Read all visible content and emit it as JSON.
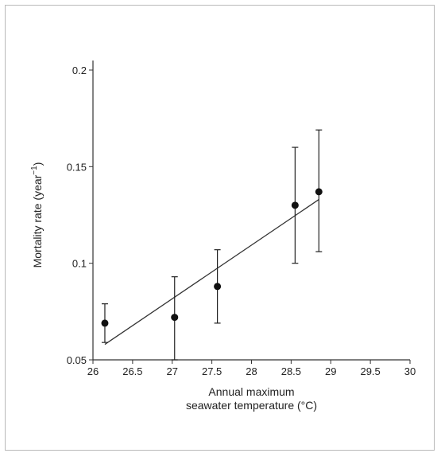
{
  "chart_data": {
    "type": "scatter",
    "title": "",
    "xlabel_lines": [
      "Annual maximum",
      "seawater temperature (°C)"
    ],
    "ylabel": "Mortality rate (year",
    "ylabel_superscript": "−1",
    "ylabel_suffix": ")",
    "xlim": [
      26,
      30
    ],
    "ylim": [
      0.05,
      0.2
    ],
    "x_ticks": [
      "26",
      "26.5",
      "27",
      "27.5",
      "28",
      "28.5",
      "29",
      "29.5",
      "30"
    ],
    "y_ticks": [
      "0.05",
      "0.1",
      "0.15",
      "0.2"
    ],
    "grid": false,
    "points": [
      {
        "x": 26.15,
        "y": 0.069,
        "err_low": 0.059,
        "err_high": 0.079
      },
      {
        "x": 27.03,
        "y": 0.072,
        "err_low": 0.05,
        "err_high": 0.093
      },
      {
        "x": 27.57,
        "y": 0.088,
        "err_low": 0.069,
        "err_high": 0.107
      },
      {
        "x": 28.55,
        "y": 0.13,
        "err_low": 0.1,
        "err_high": 0.16
      },
      {
        "x": 28.85,
        "y": 0.137,
        "err_low": 0.106,
        "err_high": 0.169
      }
    ],
    "fit_line": {
      "x": [
        26.15,
        28.85
      ],
      "y": [
        0.058,
        0.133
      ]
    },
    "colors": {
      "marker": "#111111",
      "line": "#333333",
      "axis": "#333333"
    }
  }
}
